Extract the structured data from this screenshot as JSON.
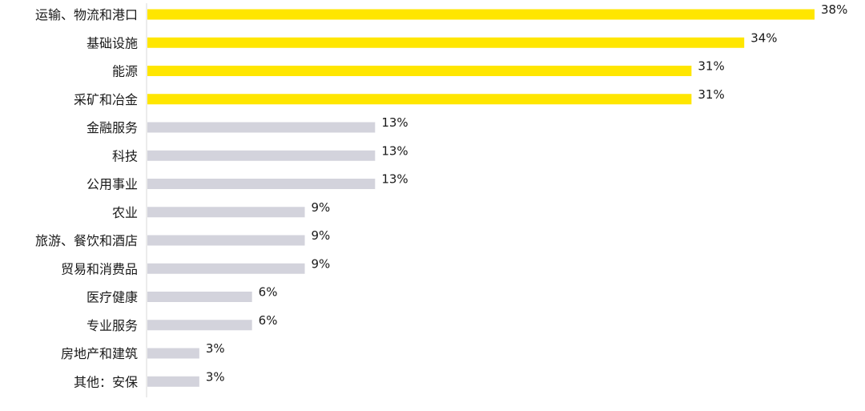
{
  "chart_data": {
    "type": "bar",
    "orientation": "horizontal",
    "title": "",
    "xlabel": "",
    "ylabel": "",
    "unit": "%",
    "xlim": [
      0,
      38
    ],
    "grid": false,
    "legend": "none",
    "categories": [
      "运输、物流和港口",
      "基础设施",
      "能源",
      "采矿和冶金",
      "金融服务",
      "科技",
      "公用事业",
      "农业",
      "旅游、餐饮和酒店",
      "贸易和消费品",
      "医疗健康",
      "专业服务",
      "房地产和建筑",
      "其他：安保"
    ],
    "values": [
      38,
      34,
      31,
      31,
      13,
      13,
      13,
      9,
      9,
      9,
      6,
      6,
      3,
      3
    ],
    "value_labels": [
      "38%",
      "34%",
      "31%",
      "31%",
      "13%",
      "13%",
      "13%",
      "9%",
      "9%",
      "9%",
      "6%",
      "6%",
      "3%",
      "3%"
    ],
    "colors": {
      "highlight": "#FFE600",
      "default": "#D3D3DC",
      "axis": "#D9D9D9",
      "text": "#1a1a1a"
    },
    "highlighted_categories": [
      "运输、物流和港口",
      "基础设施",
      "能源",
      "采矿和冶金"
    ]
  }
}
